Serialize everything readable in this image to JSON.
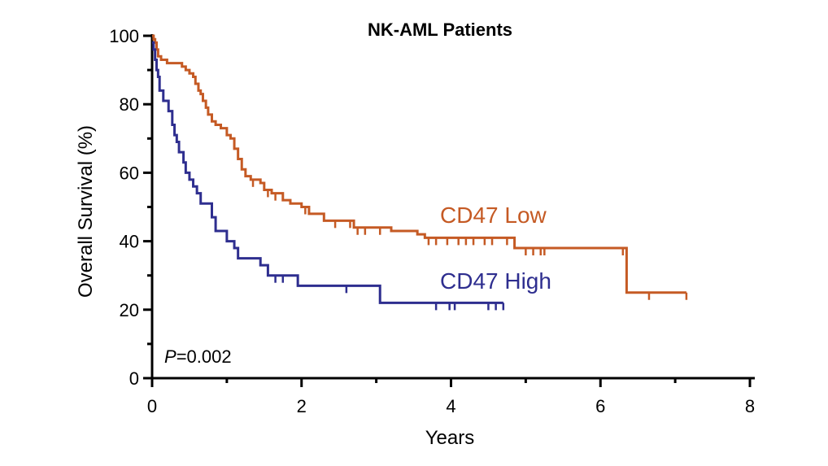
{
  "chart_data": {
    "type": "line",
    "subtype": "kaplan-meier",
    "title": "NK-AML Patients",
    "xlabel": "Years",
    "ylabel": "Overall Survival (%)",
    "xlim": [
      0,
      8
    ],
    "ylim": [
      0,
      100
    ],
    "xticks": [
      0,
      2,
      4,
      6,
      8
    ],
    "yticks": [
      0,
      20,
      40,
      60,
      80,
      100
    ],
    "xtick_labels": [
      "0",
      "2",
      "4",
      "6",
      "8"
    ],
    "ytick_labels": [
      "0",
      "20",
      "40",
      "60",
      "80",
      "100"
    ],
    "grid": false,
    "annotation": {
      "italic": "P",
      "rest": "=0.002"
    },
    "series": [
      {
        "name": "CD47 Low",
        "color": "#c55a24",
        "steps": [
          [
            0,
            100
          ],
          [
            0.02,
            99
          ],
          [
            0.04,
            98
          ],
          [
            0.06,
            96
          ],
          [
            0.08,
            94
          ],
          [
            0.12,
            93
          ],
          [
            0.2,
            92
          ],
          [
            0.4,
            91
          ],
          [
            0.45,
            90
          ],
          [
            0.5,
            89
          ],
          [
            0.55,
            88
          ],
          [
            0.58,
            86
          ],
          [
            0.62,
            84
          ],
          [
            0.65,
            83
          ],
          [
            0.68,
            81
          ],
          [
            0.72,
            79
          ],
          [
            0.75,
            77
          ],
          [
            0.8,
            75
          ],
          [
            0.85,
            74
          ],
          [
            0.92,
            73
          ],
          [
            1.0,
            71
          ],
          [
            1.05,
            70
          ],
          [
            1.1,
            67
          ],
          [
            1.15,
            64
          ],
          [
            1.2,
            61
          ],
          [
            1.25,
            59
          ],
          [
            1.32,
            58
          ],
          [
            1.45,
            57
          ],
          [
            1.5,
            55
          ],
          [
            1.6,
            54
          ],
          [
            1.75,
            52
          ],
          [
            1.85,
            51
          ],
          [
            2.0,
            50
          ],
          [
            2.1,
            48
          ],
          [
            2.3,
            46
          ],
          [
            2.7,
            44
          ],
          [
            3.2,
            43
          ],
          [
            3.55,
            42
          ],
          [
            3.65,
            41
          ],
          [
            4.85,
            38
          ],
          [
            6.35,
            25
          ],
          [
            7.15,
            25
          ]
        ],
        "censors": [
          [
            1.35,
            58
          ],
          [
            1.55,
            55
          ],
          [
            1.65,
            54
          ],
          [
            2.05,
            50
          ],
          [
            2.45,
            46
          ],
          [
            2.65,
            46
          ],
          [
            2.75,
            44
          ],
          [
            2.85,
            44
          ],
          [
            3.05,
            44
          ],
          [
            3.7,
            41
          ],
          [
            3.8,
            41
          ],
          [
            3.95,
            41
          ],
          [
            4.1,
            41
          ],
          [
            4.2,
            41
          ],
          [
            4.3,
            41
          ],
          [
            4.45,
            41
          ],
          [
            4.55,
            41
          ],
          [
            4.75,
            41
          ],
          [
            5.0,
            38
          ],
          [
            5.1,
            38
          ],
          [
            5.2,
            38
          ],
          [
            5.25,
            38
          ],
          [
            6.3,
            38
          ],
          [
            6.65,
            25
          ],
          [
            7.15,
            25
          ]
        ]
      },
      {
        "name": "CD47 High",
        "color": "#2e2e8f",
        "steps": [
          [
            0,
            98
          ],
          [
            0.02,
            96
          ],
          [
            0.04,
            93
          ],
          [
            0.06,
            90
          ],
          [
            0.08,
            88
          ],
          [
            0.1,
            84
          ],
          [
            0.15,
            81
          ],
          [
            0.22,
            78
          ],
          [
            0.27,
            74
          ],
          [
            0.3,
            71
          ],
          [
            0.33,
            69
          ],
          [
            0.36,
            66
          ],
          [
            0.42,
            63
          ],
          [
            0.45,
            60
          ],
          [
            0.5,
            58
          ],
          [
            0.55,
            56
          ],
          [
            0.6,
            54
          ],
          [
            0.65,
            51
          ],
          [
            0.8,
            47
          ],
          [
            0.85,
            43
          ],
          [
            1.0,
            40
          ],
          [
            1.1,
            38
          ],
          [
            1.15,
            35
          ],
          [
            1.45,
            33
          ],
          [
            1.55,
            30
          ],
          [
            1.95,
            27
          ],
          [
            3.05,
            22
          ],
          [
            4.7,
            22
          ]
        ],
        "censors": [
          [
            1.65,
            30
          ],
          [
            1.75,
            30
          ],
          [
            2.6,
            27
          ],
          [
            3.8,
            22
          ],
          [
            3.98,
            22
          ],
          [
            4.05,
            22
          ],
          [
            4.5,
            22
          ],
          [
            4.6,
            22
          ],
          [
            4.7,
            22
          ]
        ]
      }
    ]
  }
}
